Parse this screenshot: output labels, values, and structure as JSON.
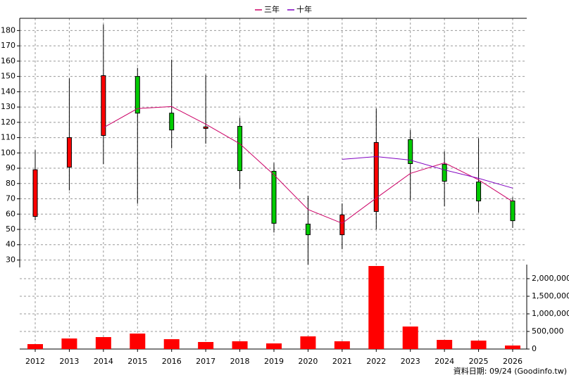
{
  "chart_data": {
    "type": "candlestick",
    "categories": [
      "2012",
      "2013",
      "2014",
      "2015",
      "2016",
      "2017",
      "2018",
      "2019",
      "2020",
      "2021",
      "2022",
      "2023",
      "2024",
      "2025",
      "2026"
    ],
    "open": [
      58.5,
      90.7,
      111.4,
      150,
      126,
      116,
      117.4,
      88,
      53.5,
      46.5,
      61.7,
      108.7,
      92.5,
      81,
      68.6
    ],
    "high": [
      101.8,
      148.7,
      184,
      155.6,
      161,
      151,
      123,
      93.5,
      72,
      67,
      129,
      115,
      101,
      109.6,
      71
    ],
    "low": [
      56,
      75.5,
      92.6,
      66.8,
      103,
      106,
      76.5,
      48,
      27,
      37,
      50,
      69,
      65,
      61,
      51
    ],
    "close": [
      89,
      110,
      150.5,
      126,
      115,
      117,
      88.4,
      54,
      46.5,
      59.5,
      106.8,
      93,
      81.5,
      68.6,
      55.7
    ],
    "up_color": "#ff0000",
    "down_color": "#00cc00",
    "ylim": [
      27,
      188
    ],
    "yticks": [
      30,
      40,
      50,
      60,
      70,
      80,
      90,
      100,
      110,
      120,
      130,
      140,
      150,
      160,
      170,
      180
    ],
    "series": [
      {
        "name": "三年",
        "color": "#cc0066",
        "values": [
          null,
          null,
          116.5,
          129,
          130.3,
          118.8,
          106,
          85.7,
          63,
          54,
          70.5,
          86.6,
          93.5,
          82.4,
          68.2
        ]
      },
      {
        "name": "十年",
        "color": "#8000c0",
        "values": [
          null,
          null,
          null,
          null,
          null,
          null,
          null,
          null,
          null,
          95.8,
          97.6,
          95.3,
          88.9,
          83.4,
          77
        ]
      }
    ],
    "volume": {
      "color": "#ff0000",
      "values": [
        140000,
        300000,
        340000,
        440000,
        280000,
        200000,
        220000,
        160000,
        360000,
        220000,
        2360000,
        640000,
        260000,
        240000,
        100000
      ],
      "ylim": [
        0,
        2400000
      ],
      "yticks": [
        0,
        {
          "value": 500000,
          "label": "500,000"
        },
        {
          "value": 1000000,
          "label": "1,000,000"
        },
        {
          "value": 1500000,
          "label": "1,500,000"
        },
        {
          "value": 2000000,
          "label": "2,000,000"
        }
      ]
    },
    "grid": true,
    "footer": "資料日期: 09/24  (Goodinfo.tw)"
  }
}
